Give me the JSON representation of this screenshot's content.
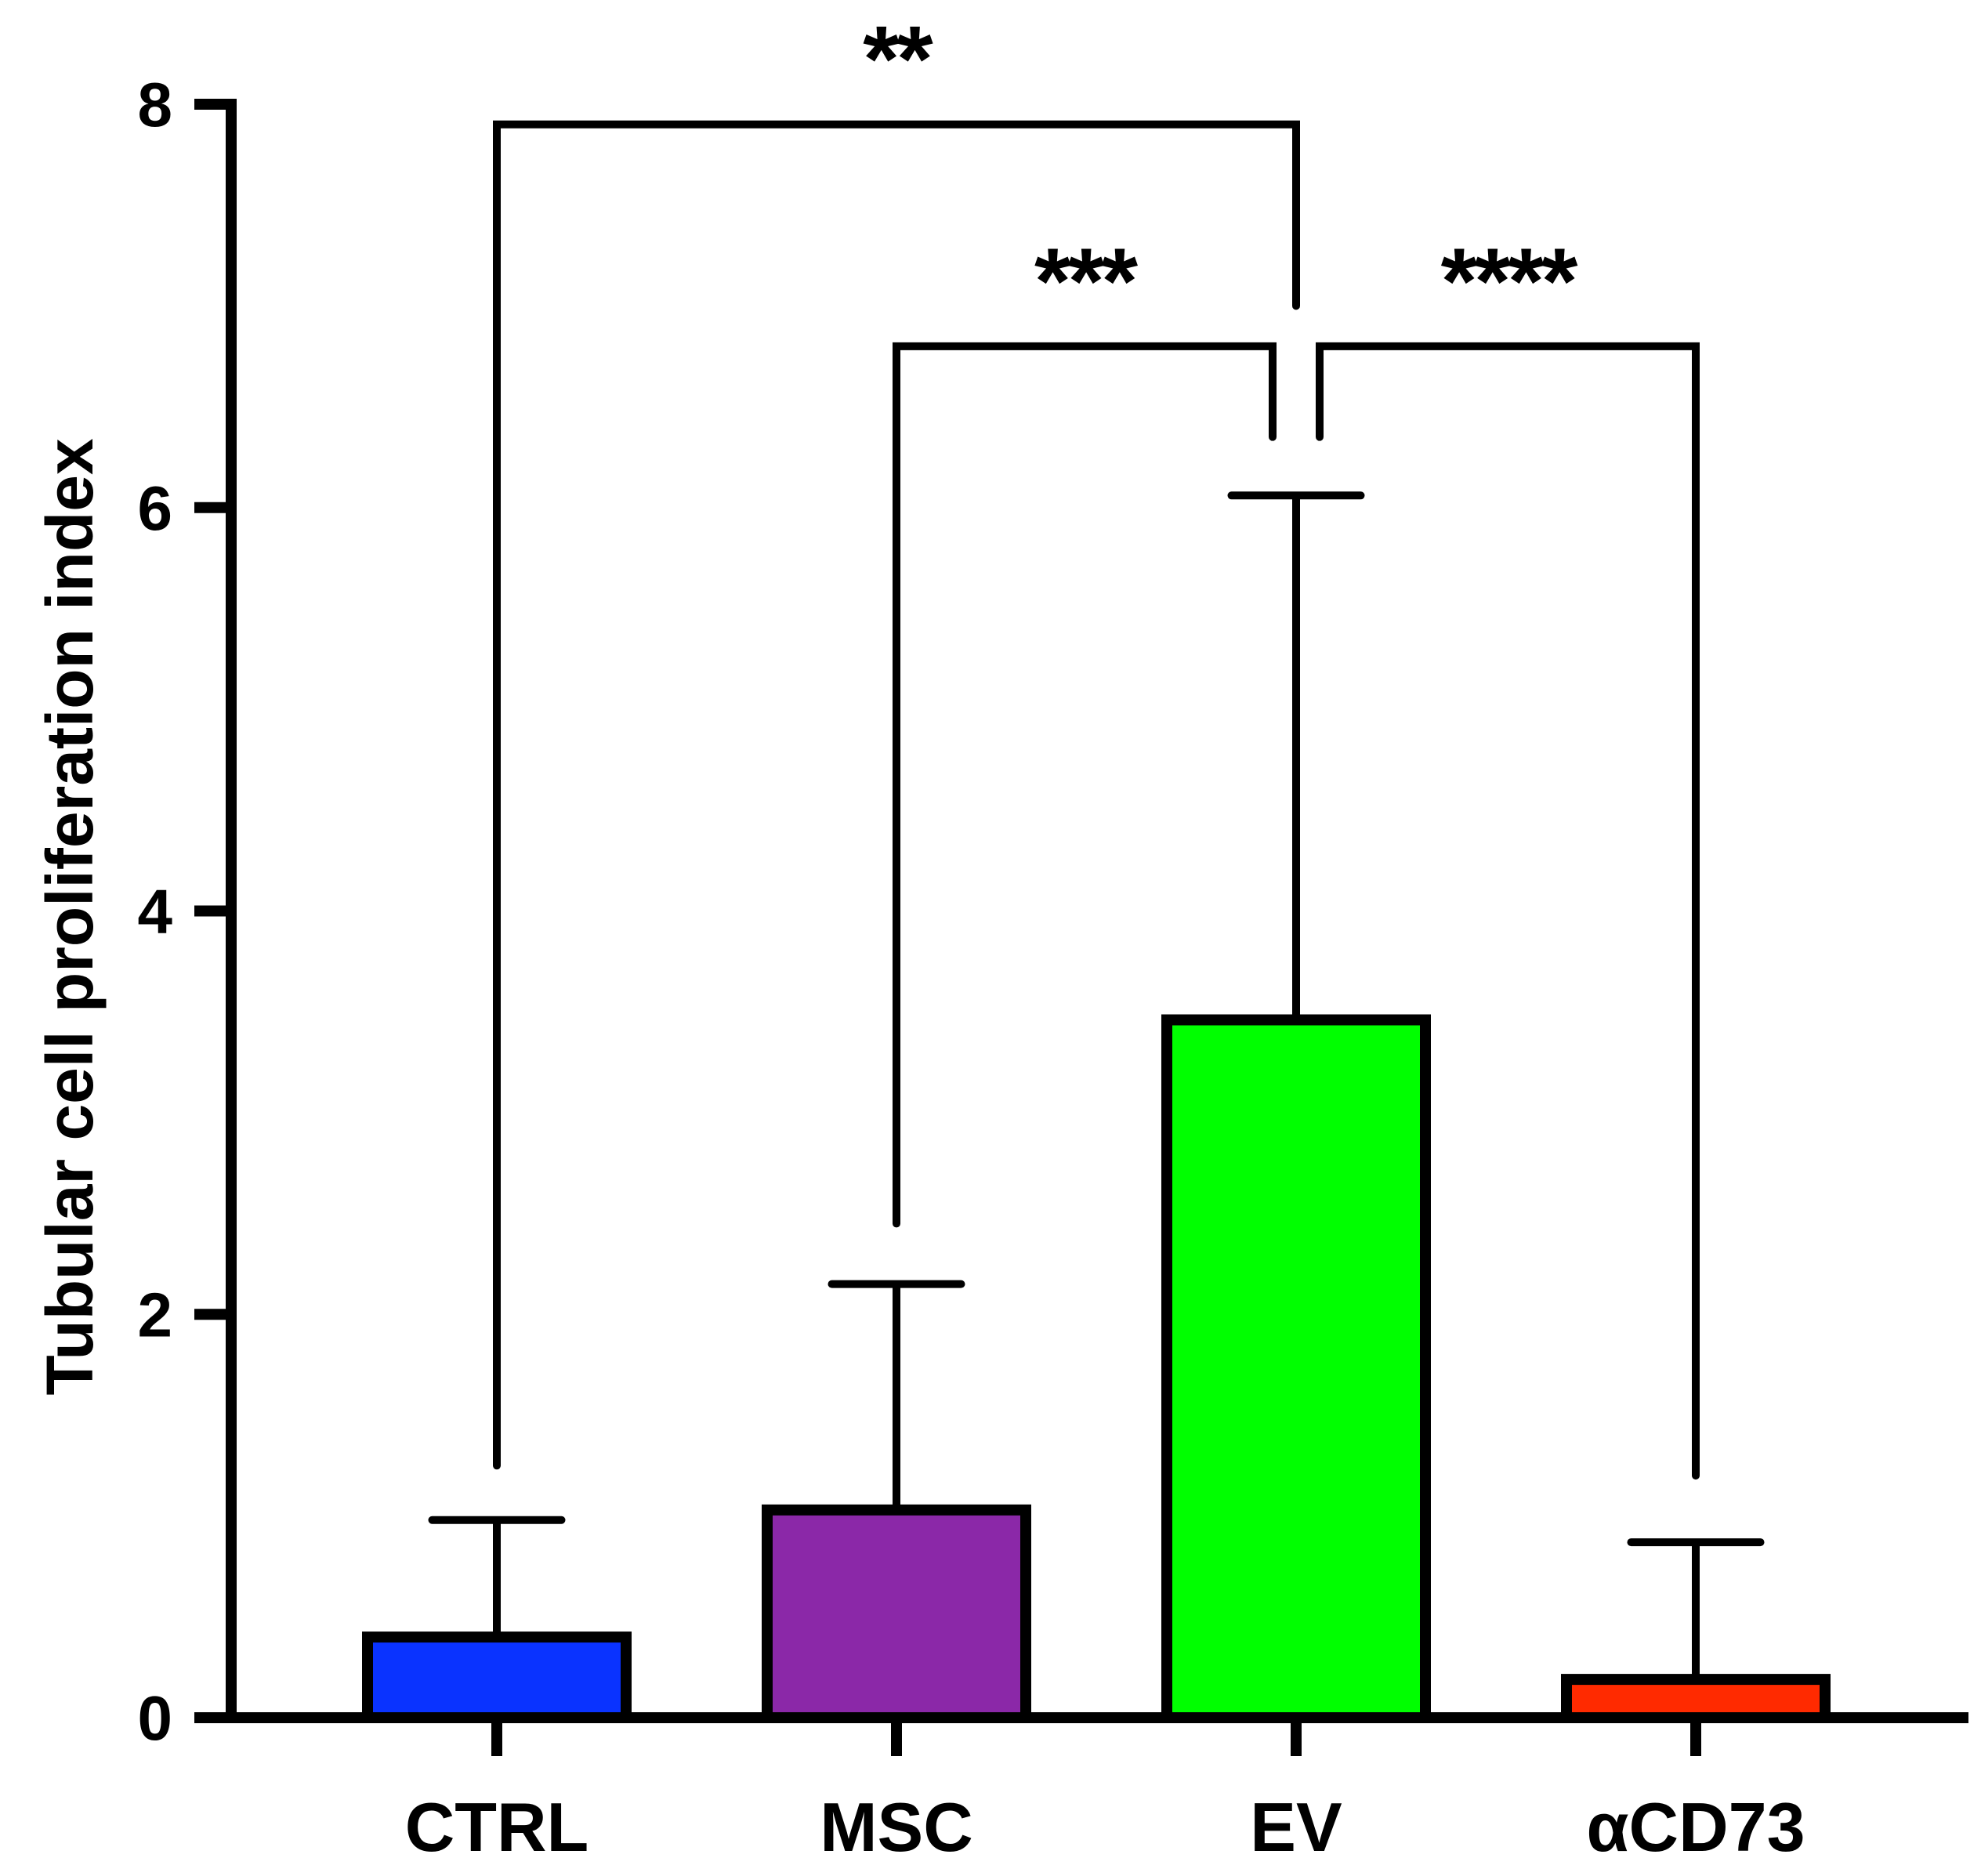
{
  "chart_data": {
    "type": "bar",
    "title": "",
    "xlabel": "",
    "ylabel": "Tubular cell proliferation index",
    "ylim": [
      0,
      8
    ],
    "yticks": [
      "0",
      "2",
      "4",
      "6",
      "8"
    ],
    "categories": [
      "CTRL",
      "MSC",
      "EV",
      "αCD73"
    ],
    "values": [
      0.4,
      1.03,
      3.46,
      0.19
    ],
    "errors": [
      0.58,
      1.12,
      2.6,
      0.68
    ],
    "colors": [
      "#0a33ff",
      "#8b28a8",
      "#00ff00",
      "#ff2a00"
    ],
    "edge_color": "#000000",
    "grid": false,
    "legend": "none",
    "significance": [
      {
        "from": 0,
        "to": 2,
        "label": "**",
        "level": 7.9,
        "left_drop": 1.25,
        "right_drop": 7.0
      },
      {
        "from": 1,
        "to": 2,
        "label": "***",
        "level": 6.8,
        "left_drop": 2.45,
        "right_drop": 6.35
      },
      {
        "from": 2,
        "to": 3,
        "label": "****",
        "level": 6.8,
        "left_drop": 6.35,
        "right_drop": 1.2
      }
    ]
  }
}
